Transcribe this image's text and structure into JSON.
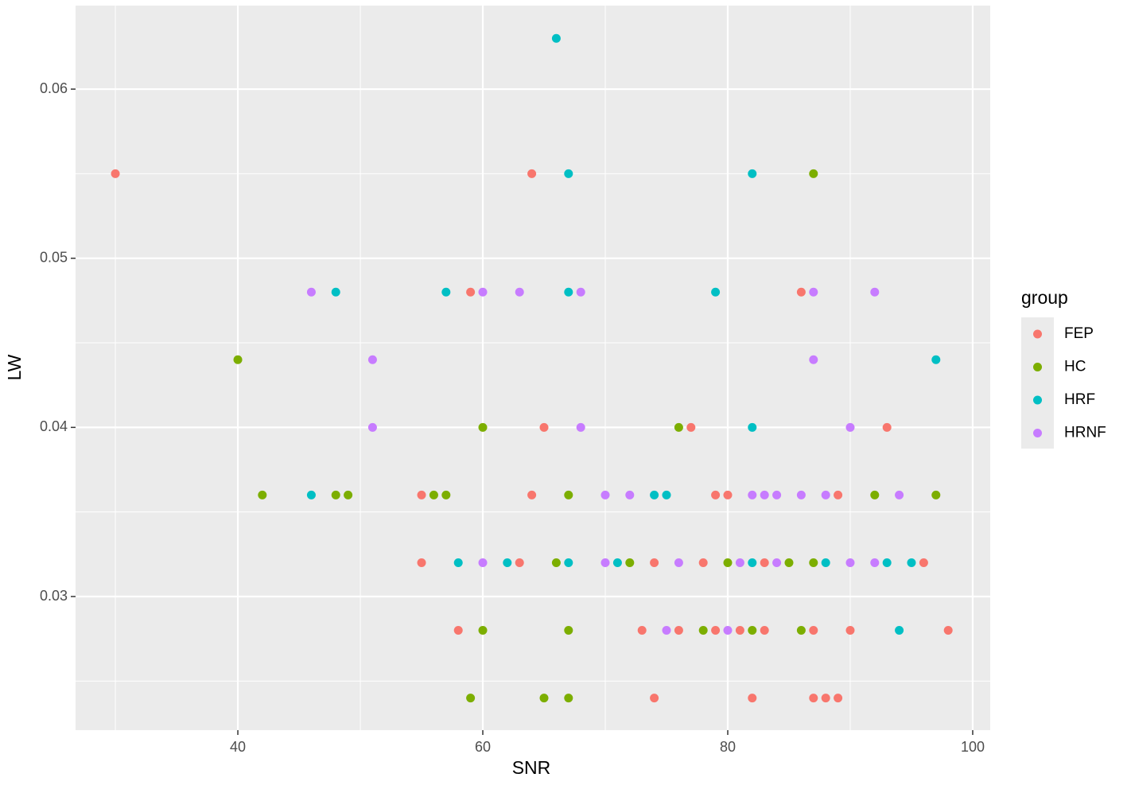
{
  "chart_data": {
    "type": "scatter",
    "x_label": "SNR",
    "y_label": "LW",
    "xlim": [
      26.75,
      101.43
    ],
    "ylim": [
      0.0221,
      0.06494
    ],
    "xticks": [
      40,
      60,
      80,
      100
    ],
    "yticks": [
      0.03,
      0.04,
      0.05,
      0.06
    ],
    "xminorticks": [
      30,
      50,
      70,
      90
    ],
    "yminorticks": [
      0.025,
      0.035,
      0.045,
      0.055
    ],
    "grid": true,
    "legend_title": "group",
    "legend_position": "right",
    "series": [
      {
        "name": "FEP",
        "color": "#f8766d",
        "x": [
          30,
          64,
          59,
          86,
          65,
          77,
          93,
          55,
          64,
          79,
          80,
          89,
          55,
          63,
          74,
          78,
          83,
          96,
          58,
          73,
          76,
          79,
          81,
          83,
          87,
          90,
          98,
          74,
          82,
          87,
          88,
          89
        ],
        "values": [
          0.055,
          0.055,
          0.048,
          0.048,
          0.04,
          0.04,
          0.04,
          0.036,
          0.036,
          0.036,
          0.036,
          0.036,
          0.032,
          0.032,
          0.032,
          0.032,
          0.032,
          0.032,
          0.028,
          0.028,
          0.028,
          0.028,
          0.028,
          0.028,
          0.028,
          0.028,
          0.028,
          0.024,
          0.024,
          0.024,
          0.024,
          0.024
        ]
      },
      {
        "name": "HC",
        "color": "#7cae00",
        "x": [
          87,
          40,
          60,
          76,
          42,
          48,
          49,
          56,
          57,
          67,
          92,
          97,
          66,
          72,
          80,
          85,
          87,
          60,
          67,
          78,
          82,
          86,
          59,
          65,
          67
        ],
        "values": [
          0.055,
          0.044,
          0.04,
          0.04,
          0.036,
          0.036,
          0.036,
          0.036,
          0.036,
          0.036,
          0.036,
          0.036,
          0.032,
          0.032,
          0.032,
          0.032,
          0.032,
          0.028,
          0.028,
          0.028,
          0.028,
          0.028,
          0.024,
          0.024,
          0.024
        ]
      },
      {
        "name": "HRF",
        "color": "#00bfc4",
        "x": [
          66,
          67,
          82,
          48,
          57,
          67,
          79,
          97,
          82,
          46,
          74,
          75,
          58,
          62,
          67,
          71,
          82,
          88,
          93,
          95,
          94
        ],
        "values": [
          0.063,
          0.055,
          0.055,
          0.048,
          0.048,
          0.048,
          0.048,
          0.044,
          0.04,
          0.036,
          0.036,
          0.036,
          0.032,
          0.032,
          0.032,
          0.032,
          0.032,
          0.032,
          0.032,
          0.032,
          0.028
        ]
      },
      {
        "name": "HRNF",
        "color": "#c77cff",
        "x": [
          46,
          60,
          63,
          68,
          87,
          92,
          51,
          87,
          51,
          68,
          90,
          70,
          72,
          82,
          83,
          84,
          86,
          88,
          94,
          60,
          70,
          76,
          81,
          84,
          90,
          92,
          75,
          80
        ],
        "values": [
          0.048,
          0.048,
          0.048,
          0.048,
          0.048,
          0.048,
          0.044,
          0.044,
          0.04,
          0.04,
          0.04,
          0.036,
          0.036,
          0.036,
          0.036,
          0.036,
          0.036,
          0.036,
          0.036,
          0.032,
          0.032,
          0.032,
          0.032,
          0.032,
          0.032,
          0.032,
          0.028,
          0.028
        ]
      }
    ]
  }
}
